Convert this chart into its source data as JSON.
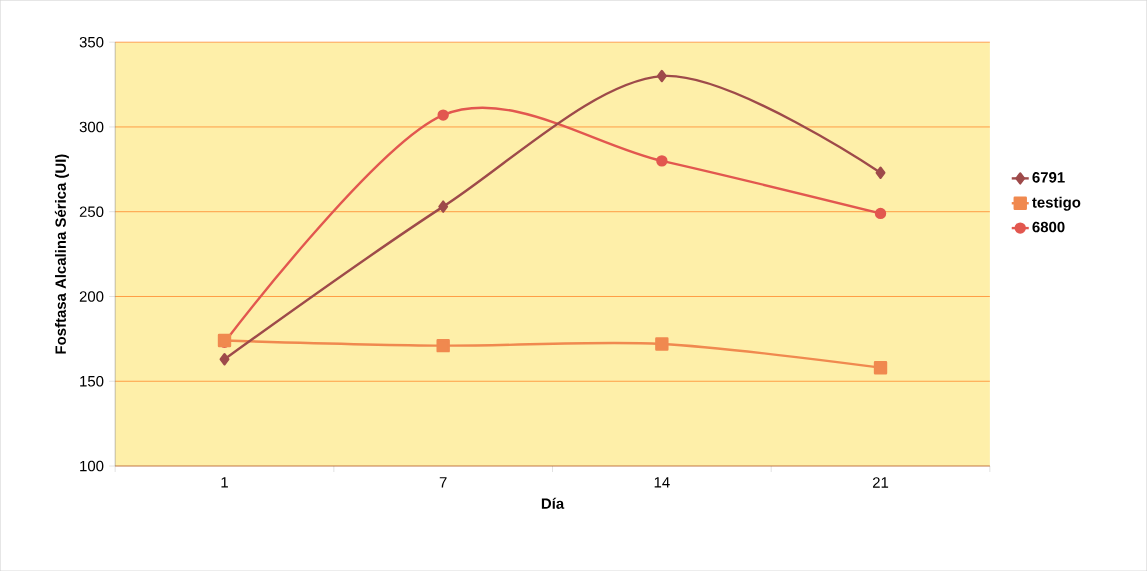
{
  "chart_data": {
    "type": "line",
    "xlabel": "Día",
    "ylabel": "Fosftasa Alcalina Sérica (UI)",
    "categories": [
      "1",
      "7",
      "14",
      "21"
    ],
    "series": [
      {
        "name": "6791",
        "color": "#9e4a4a",
        "marker": "diamond",
        "values": [
          163,
          253,
          330,
          273
        ]
      },
      {
        "name": "testigo",
        "color": "#f0894f",
        "marker": "square",
        "values": [
          174,
          171,
          172,
          158
        ]
      },
      {
        "name": "6800",
        "color": "#e2574f",
        "marker": "circle",
        "values": [
          173,
          307,
          280,
          249
        ]
      }
    ],
    "ylim": [
      100,
      350
    ],
    "yticks": [
      100,
      150,
      200,
      250,
      300,
      350
    ],
    "grid": "y",
    "legend": "right",
    "line_style": "solid"
  }
}
